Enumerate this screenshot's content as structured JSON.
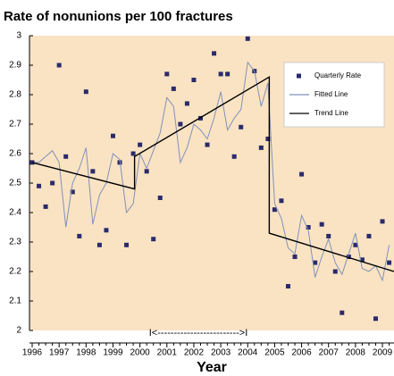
{
  "chart_data": {
    "type": "line",
    "title": "Rate of nonunions per 100 fractures",
    "x_label": "Year",
    "annotation": "I<------------------------->I",
    "xlim": [
      1995.9,
      2009.43
    ],
    "xticks": [
      1996,
      1997,
      1998,
      1999,
      2000,
      2001,
      2002,
      2003,
      2004,
      2005,
      2006,
      2007,
      2008,
      2009
    ],
    "ylim": [
      2,
      3
    ],
    "yticks": [
      2,
      2.1,
      2.2,
      2.3,
      2.4,
      2.5,
      2.6,
      2.7,
      2.8,
      2.9,
      3
    ],
    "background": "#f9e3c3",
    "legend": "upper right",
    "series": [
      {
        "name": "Quarterly Rate",
        "type": "scatter",
        "color": "#2b2a6b",
        "x": [
          1996,
          1996.25,
          1996.5,
          1996.75,
          1997,
          1997.25,
          1997.5,
          1997.75,
          1998,
          1998.25,
          1998.5,
          1998.75,
          1999,
          1999.25,
          1999.5,
          1999.75,
          2000,
          2000.25,
          2000.5,
          2000.75,
          2001,
          2001.25,
          2001.5,
          2001.75,
          2002,
          2002.25,
          2002.5,
          2002.75,
          2003,
          2003.25,
          2003.5,
          2003.75,
          2004,
          2004.25,
          2004.5,
          2004.75,
          2005,
          2005.25,
          2005.5,
          2005.75,
          2006,
          2006.25,
          2006.5,
          2006.75,
          2007,
          2007.25,
          2007.5,
          2007.75,
          2008,
          2008.25,
          2008.5,
          2008.75,
          2009,
          2009.25
        ],
        "values": [
          2.57,
          2.49,
          2.42,
          2.5,
          2.9,
          2.59,
          2.47,
          2.32,
          2.81,
          2.54,
          2.29,
          2.34,
          2.66,
          2.57,
          2.29,
          2.6,
          2.63,
          2.54,
          2.31,
          2.45,
          2.87,
          2.82,
          2.7,
          2.77,
          2.85,
          2.72,
          2.63,
          2.94,
          2.87,
          2.87,
          2.59,
          2.69,
          2.99,
          2.88,
          2.62,
          2.65,
          2.41,
          2.44,
          2.15,
          2.25,
          2.53,
          2.35,
          2.23,
          2.36,
          2.32,
          2.2,
          2.06,
          2.25,
          2.29,
          2.24,
          2.32,
          2.04,
          2.37,
          2.23
        ]
      },
      {
        "name": "Fitted Line",
        "type": "line",
        "color": "#8191ba",
        "x": [
          1996,
          1996.25,
          1996.5,
          1996.75,
          1997,
          1997.25,
          1997.5,
          1997.75,
          1998,
          1998.25,
          1998.5,
          1998.75,
          1999,
          1999.25,
          1999.5,
          1999.75,
          2000,
          2000.25,
          2000.5,
          2000.75,
          2001,
          2001.25,
          2001.5,
          2001.75,
          2002,
          2002.25,
          2002.5,
          2002.75,
          2003,
          2003.25,
          2003.5,
          2003.75,
          2004,
          2004.25,
          2004.5,
          2004.75,
          2005,
          2005.25,
          2005.5,
          2005.75,
          2006,
          2006.25,
          2006.5,
          2006.75,
          2007,
          2007.25,
          2007.5,
          2007.75,
          2008,
          2008.25,
          2008.5,
          2008.75,
          2009,
          2009.25
        ],
        "values": [
          2.57,
          2.57,
          2.59,
          2.61,
          2.57,
          2.35,
          2.5,
          2.55,
          2.62,
          2.36,
          2.46,
          2.5,
          2.6,
          2.58,
          2.4,
          2.43,
          2.6,
          2.55,
          2.61,
          2.67,
          2.79,
          2.76,
          2.57,
          2.62,
          2.7,
          2.68,
          2.65,
          2.72,
          2.81,
          2.68,
          2.72,
          2.75,
          2.91,
          2.88,
          2.76,
          2.84,
          2.43,
          2.38,
          2.28,
          2.26,
          2.39,
          2.34,
          2.18,
          2.25,
          2.31,
          2.23,
          2.19,
          2.26,
          2.33,
          2.21,
          2.2,
          2.22,
          2.17,
          2.29
        ]
      },
      {
        "name": "Trend Line",
        "type": "line",
        "color": "#000000",
        "x": [
          1996,
          1999.8,
          1999.8,
          2004.8,
          2004.8,
          2009.43
        ],
        "values": [
          2.57,
          2.48,
          2.59,
          2.86,
          2.33,
          2.2
        ]
      }
    ]
  }
}
